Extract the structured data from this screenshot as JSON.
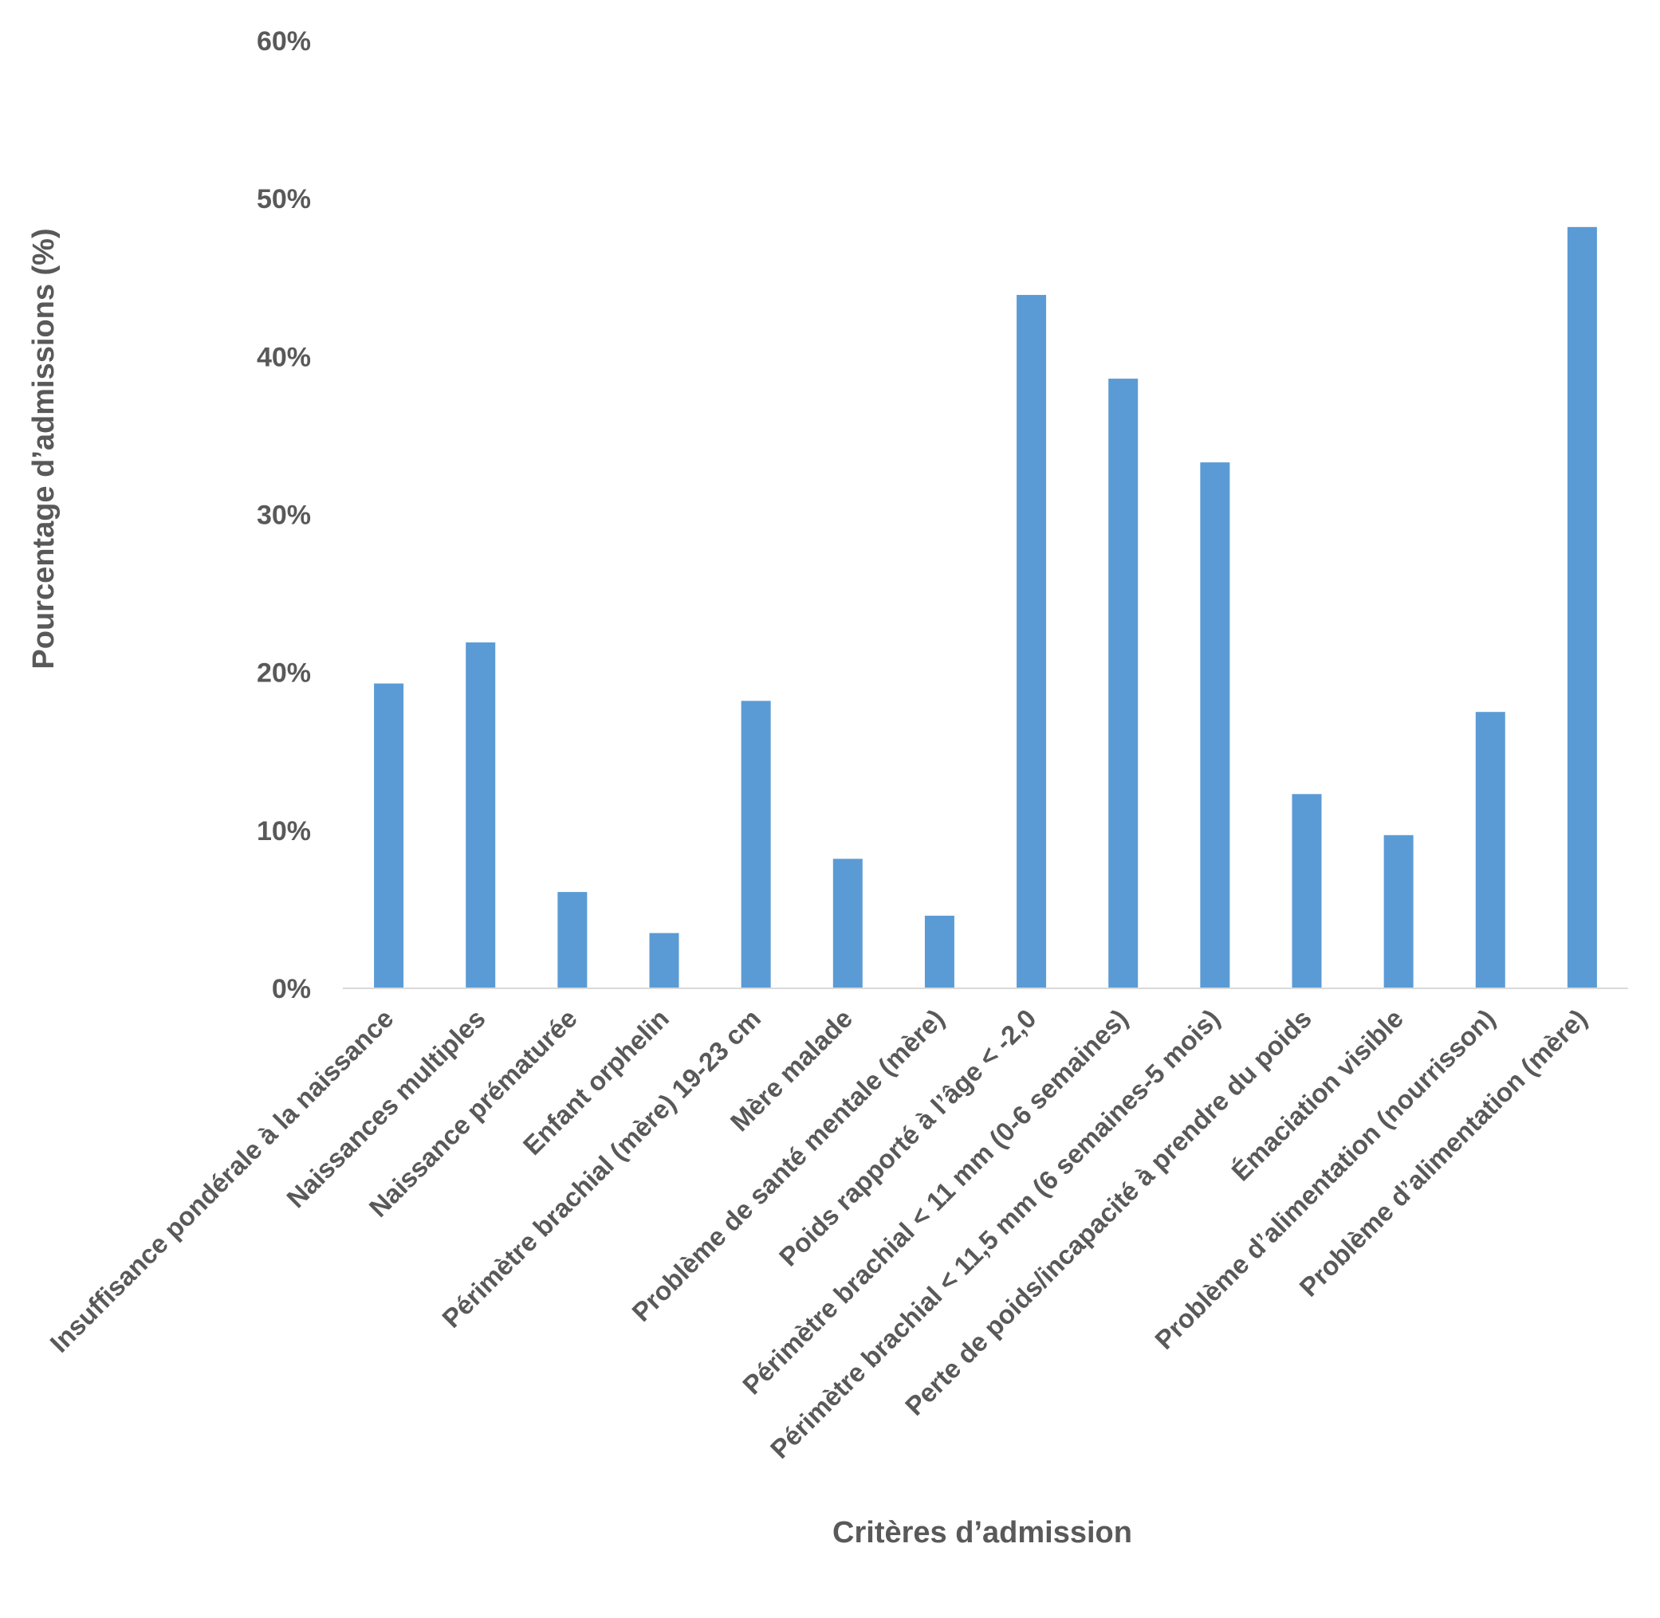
{
  "chart_data": {
    "type": "bar",
    "title": "",
    "xlabel": "Critères d’admission",
    "ylabel": "Pourcentage d’admissions (%)",
    "ylim": [
      0,
      60
    ],
    "yticks": [
      0,
      10,
      20,
      30,
      40,
      50,
      60
    ],
    "ytick_labels": [
      "0%",
      "10%",
      "20%",
      "30%",
      "40%",
      "50%",
      "60%"
    ],
    "grid": false,
    "legend": "none",
    "bar_color": "#5B9BD5",
    "categories": [
      "Insuffisance pondérale à la naissance",
      "Naissances multiples",
      "Naissance prématurée",
      "Enfant orphelin",
      "Périmètre brachial (mère) 19-23 cm",
      "Mère malade",
      "Problème de santé mentale (mère)",
      "Poids rapporté à l’âge < -2,0",
      "Périmètre brachial < 11 mm (0-6 semaines)",
      "Périmètre brachial < 11,5 mm (6 semaines-5 mois)",
      "Perte de poids/incapacité à prendre du poids",
      "Émaciation visible",
      "Problème d’alimentation  (nourrisson)",
      "Problème d’alimentation  (mère)"
    ],
    "values": [
      19.3,
      21.9,
      6.1,
      3.5,
      18.2,
      8.2,
      4.6,
      43.9,
      38.6,
      33.3,
      12.3,
      9.7,
      17.5,
      48.2
    ]
  }
}
